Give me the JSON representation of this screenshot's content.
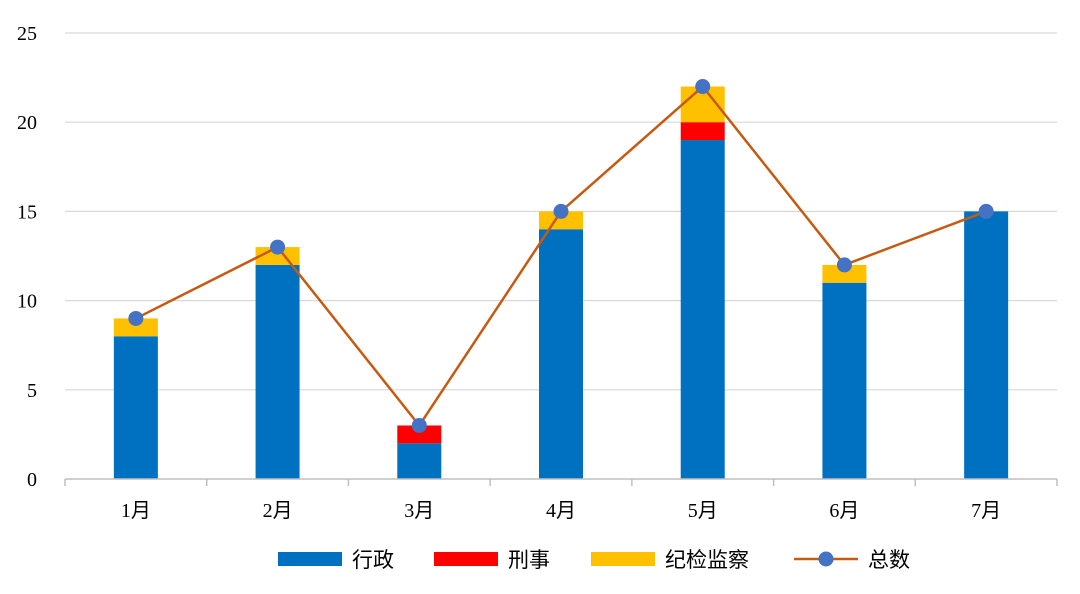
{
  "chart_data": {
    "type": "bar",
    "stacked": true,
    "categories": [
      "1月",
      "2月",
      "3月",
      "4月",
      "5月",
      "6月",
      "7月"
    ],
    "series": [
      {
        "name": "行政",
        "type": "bar",
        "color": "#0070C0",
        "values": [
          8,
          12,
          2,
          14,
          19,
          11,
          15
        ]
      },
      {
        "name": "刑事",
        "type": "bar",
        "color": "#FF0000",
        "values": [
          0,
          0,
          1,
          0,
          1,
          0,
          0
        ]
      },
      {
        "name": "纪检监察",
        "type": "bar",
        "color": "#FFC000",
        "values": [
          1,
          1,
          0,
          1,
          2,
          1,
          0
        ]
      },
      {
        "name": "总数",
        "type": "line",
        "color": "#C55A11",
        "marker_color": "#4472C4",
        "values": [
          9,
          13,
          3,
          15,
          22,
          12,
          15
        ]
      }
    ],
    "ylim": [
      0,
      25
    ],
    "yticks": [
      0,
      5,
      10,
      15,
      20,
      25
    ],
    "title": "",
    "xlabel": "",
    "ylabel": "",
    "grid": true,
    "legend_position": "bottom"
  }
}
